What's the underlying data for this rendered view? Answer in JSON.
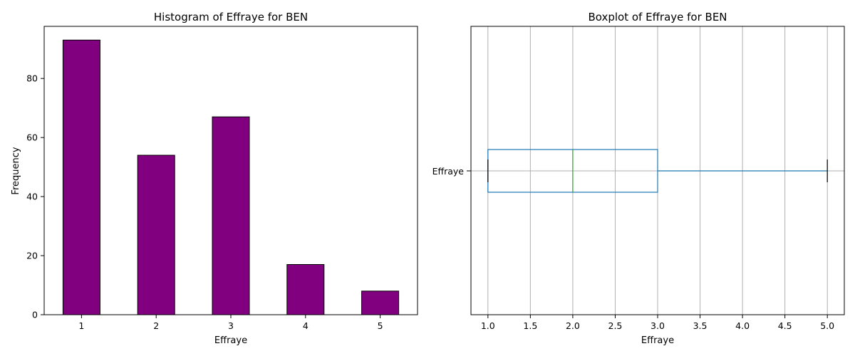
{
  "chart_data": [
    {
      "type": "bar",
      "title": "Histogram of Effraye for BEN",
      "xlabel": "Effraye",
      "ylabel": "Frequency",
      "categories": [
        "1",
        "2",
        "3",
        "4",
        "5"
      ],
      "values": [
        93,
        54,
        67,
        17,
        8
      ],
      "ylim": [
        0,
        97.65
      ],
      "yticks": [
        0,
        20,
        40,
        60,
        80
      ],
      "bar_color": "#800080",
      "edge_color": "#000000",
      "grid": false
    },
    {
      "type": "boxplot",
      "title": "Boxplot of Effraye for BEN",
      "xlabel": "Effraye",
      "category_label": "Effraye",
      "xlim": [
        0.8,
        5.2
      ],
      "xticks": [
        "1.0",
        "1.5",
        "2.0",
        "2.5",
        "3.0",
        "3.5",
        "4.0",
        "4.5",
        "5.0"
      ],
      "stats": {
        "whisker_low": 1.0,
        "q1": 1.0,
        "median": 2.0,
        "q3": 3.0,
        "whisker_high": 5.0
      },
      "box_color": "#1f77b4",
      "median_color": "#2ca02c",
      "cap_color": "#000000",
      "grid": true
    }
  ]
}
